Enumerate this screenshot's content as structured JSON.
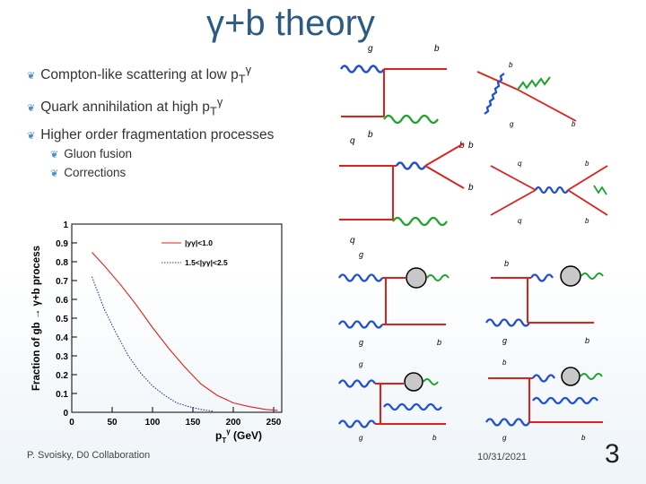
{
  "title": "γ+b theory",
  "bullets": [
    {
      "text": "Compton-like scattering at low p",
      "sub": "T",
      "sup": "γ"
    },
    {
      "text": "Quark annihilation at high p",
      "sub": "T",
      "sup": "γ"
    },
    {
      "text": "Higher order fragmentation processes"
    }
  ],
  "subbullets": [
    "Gluon fusion",
    "Corrections"
  ],
  "footer": {
    "author": "P. Svoisky, D0 Collaboration",
    "date": "10/31/2021",
    "page": "3"
  },
  "colors": {
    "title": "#2d5a80",
    "quark_line": "#e0201b",
    "gluon_line": "#1f4fd8",
    "photon_line": "#1aa32a",
    "series1": "#e0201b",
    "series2": "#1f3fa0"
  },
  "diagram_labels": {
    "g": "g",
    "b": "b",
    "q": "q"
  },
  "chart_data": {
    "type": "line",
    "ylabel": "Fraction of gb → γ+b process",
    "xlabel": "p",
    "xlabel_sub": "T",
    "xlabel_sup": "γ",
    "xlabel_unit": " (GeV)",
    "xlim": [
      0,
      260
    ],
    "ylim": [
      0,
      1
    ],
    "xticks": [
      "0",
      "50",
      "100",
      "150",
      "200",
      "250"
    ],
    "yticks": [
      "0",
      "0.1",
      "0.2",
      "0.3",
      "0.4",
      "0.5",
      "0.6",
      "0.7",
      "0.8",
      "0.9",
      "1"
    ],
    "legend": [
      "|yγ|<1.0",
      "1.5<|yγ|<2.5"
    ],
    "series": [
      {
        "name": "|yγ|<1.0",
        "style": "solid",
        "x": [
          25,
          40,
          60,
          80,
          100,
          120,
          140,
          160,
          180,
          200,
          220,
          240,
          255
        ],
        "y": [
          0.85,
          0.78,
          0.68,
          0.57,
          0.45,
          0.34,
          0.24,
          0.15,
          0.09,
          0.05,
          0.03,
          0.015,
          0.01
        ]
      },
      {
        "name": "1.5<|yγ|<2.5",
        "style": "dotted",
        "x": [
          25,
          40,
          55,
          70,
          85,
          100,
          115,
          130,
          145,
          160,
          175
        ],
        "y": [
          0.72,
          0.55,
          0.42,
          0.3,
          0.21,
          0.14,
          0.09,
          0.05,
          0.03,
          0.015,
          0.005
        ]
      }
    ]
  }
}
